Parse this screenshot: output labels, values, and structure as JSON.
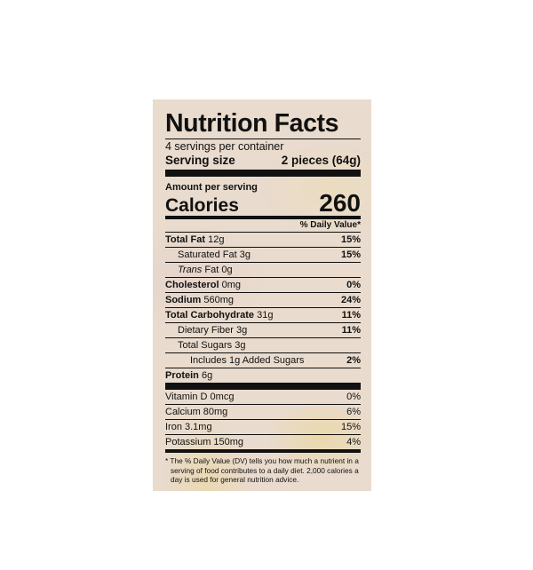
{
  "title": "Nutrition Facts",
  "servings": "4 servings per container",
  "serving_size": {
    "label": "Serving size",
    "value": "2 pieces (64g)"
  },
  "amount_per_serving": "Amount per serving",
  "calories": {
    "label": "Calories",
    "value": "260"
  },
  "daily_value_header": "% Daily Value*",
  "nutrients": [
    {
      "name": "Total Fat",
      "amount": "12g",
      "dv": "15%"
    },
    {
      "name": "Saturated Fat 3g",
      "dv": "15%"
    },
    {
      "prefix": "Trans",
      "name": "Fat 0g"
    },
    {
      "name": "Cholesterol",
      "amount": "0mg",
      "dv": "0%"
    },
    {
      "name": "Sodium",
      "amount": "560mg",
      "dv": "24%"
    },
    {
      "name": "Total Carbohydrate",
      "amount": "31g",
      "dv": "11%"
    },
    {
      "name": "Dietary Fiber 3g",
      "dv": "11%"
    },
    {
      "name": "Total Sugars 3g"
    },
    {
      "name": "Includes 1g Added Sugars",
      "dv": "2%"
    },
    {
      "name": "Protein",
      "amount": "6g"
    }
  ],
  "vitamins": [
    {
      "name": "Vitamin D 0mcg",
      "dv": "0%"
    },
    {
      "name": "Calcium 80mg",
      "dv": "6%"
    },
    {
      "name": "Iron 3.1mg",
      "dv": "15%"
    },
    {
      "name": "Potassium 150mg",
      "dv": "4%"
    }
  ],
  "footnote": "* The % Daily Value (DV) tells you how much a nutrient in a serving of food contributes to a daily diet. 2,000 calories a day is used for general nutrition advice."
}
